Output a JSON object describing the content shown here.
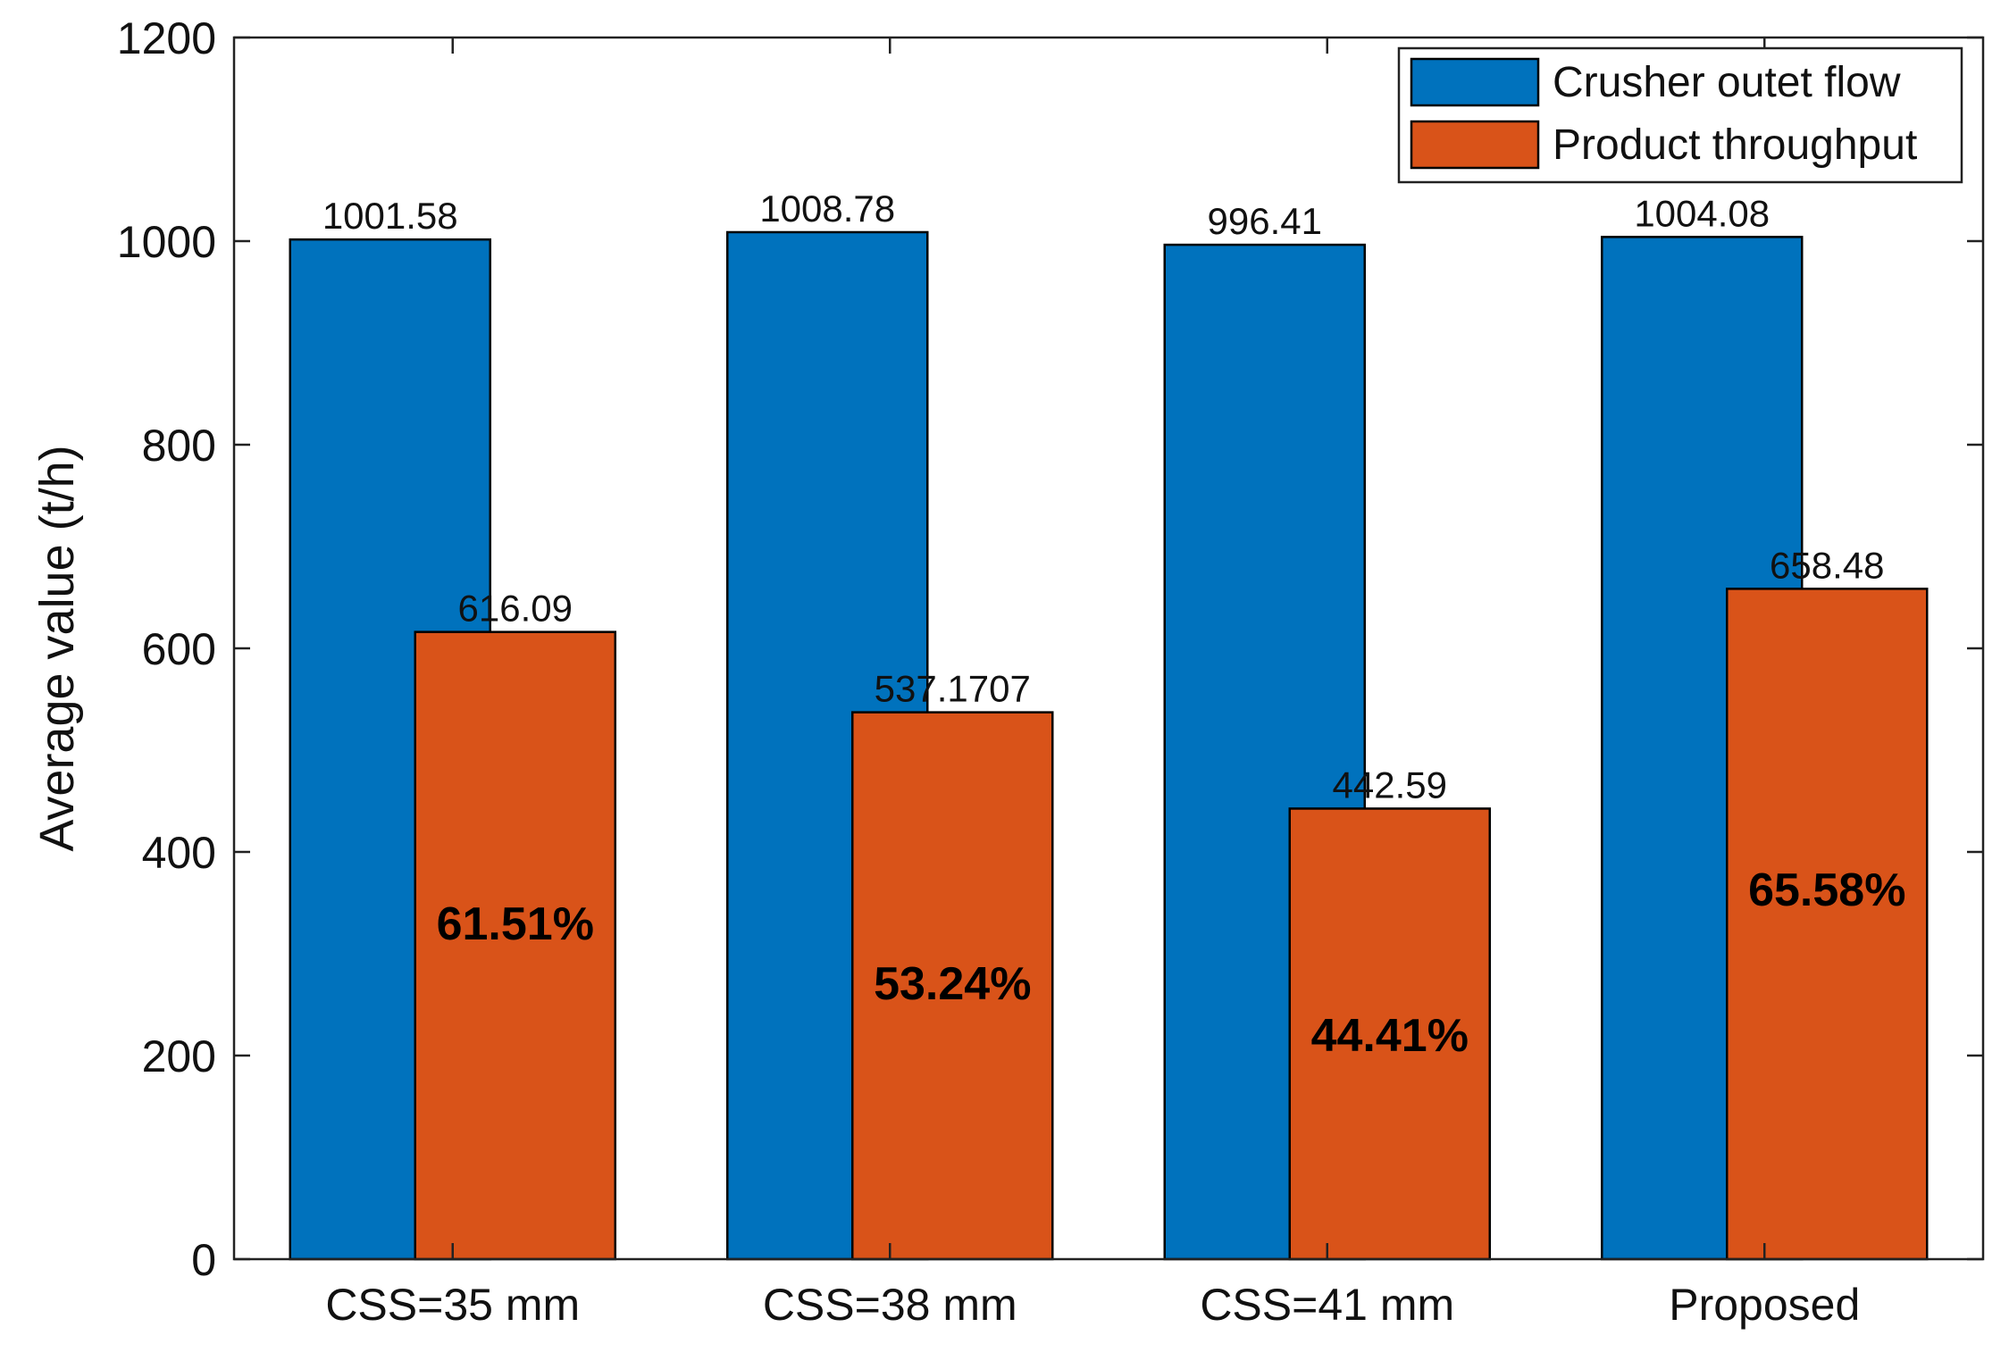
{
  "chart_data": {
    "type": "bar",
    "title": "",
    "xlabel": "",
    "ylabel": "Average value (t/h)",
    "ylim": [
      0,
      1200
    ],
    "yticks": [
      0,
      200,
      400,
      600,
      800,
      1000,
      1200
    ],
    "grid": false,
    "legend_position": "top-right",
    "categories": [
      "CSS=35 mm",
      "CSS=38 mm",
      "CSS=41 mm",
      "Proposed"
    ],
    "series": [
      {
        "name": "Crusher outet flow",
        "color": "#0072BD",
        "values": [
          1001.58,
          1008.78,
          996.41,
          1004.08
        ],
        "labels": [
          "1001.58",
          "1008.78",
          "996.41",
          "1004.08"
        ]
      },
      {
        "name": "Product throughput",
        "color": "#D95319",
        "values": [
          616.09,
          537.1707,
          442.59,
          658.48
        ],
        "labels": [
          "616.09",
          "537.1707",
          "442.59",
          "658.48"
        ]
      }
    ],
    "annotations": [
      {
        "series": 1,
        "category": 0,
        "text": "61.51%",
        "y": 330
      },
      {
        "series": 1,
        "category": 1,
        "text": "53.24%",
        "y": 271
      },
      {
        "series": 1,
        "category": 2,
        "text": "44.41%",
        "y": 220
      },
      {
        "series": 1,
        "category": 3,
        "text": "65.58%",
        "y": 363
      }
    ]
  }
}
